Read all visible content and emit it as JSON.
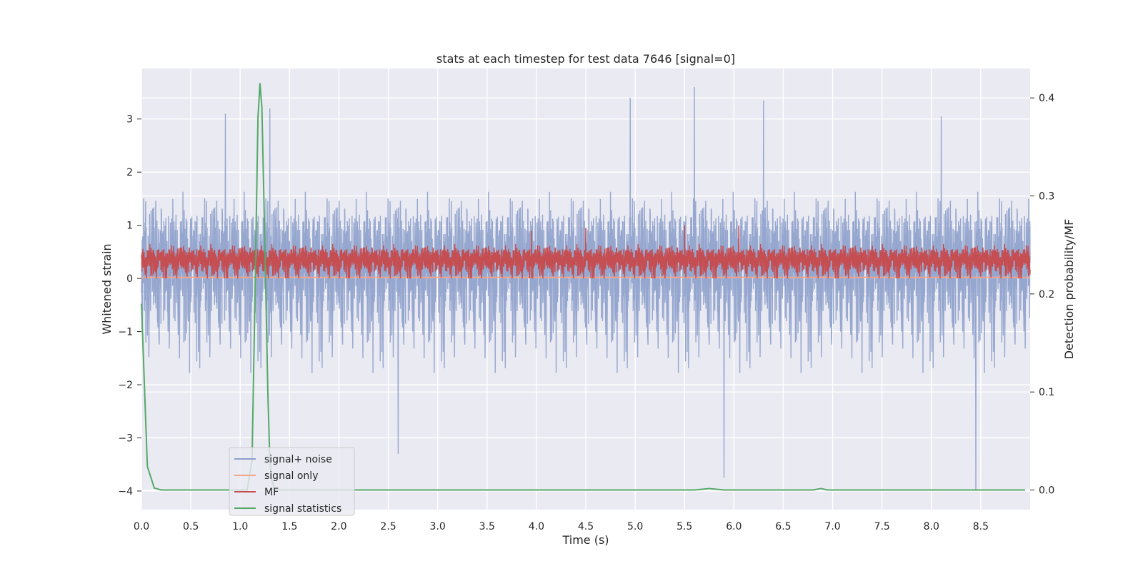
{
  "chart_data": {
    "type": "line",
    "title": "stats at each timestep for test data 7646 [signal=0]",
    "xlabel": "Time (s)",
    "ylabel_left": "Whitened strain",
    "ylabel_right": "Detection probability/MF",
    "xlim": [
      0.0,
      9.0
    ],
    "ylim_left": [
      -4.35,
      3.95
    ],
    "ylim_right": [
      -0.02,
      0.43
    ],
    "x_ticks": [
      0.0,
      0.5,
      1.0,
      1.5,
      2.0,
      2.5,
      3.0,
      3.5,
      4.0,
      4.5,
      5.0,
      5.5,
      6.0,
      6.5,
      7.0,
      7.5,
      8.0,
      8.5
    ],
    "x_tick_labels": [
      "0.0",
      "0.5",
      "1.0",
      "1.5",
      "2.0",
      "2.5",
      "3.0",
      "3.5",
      "4.0",
      "4.5",
      "5.0",
      "5.5",
      "6.0",
      "6.5",
      "7.0",
      "7.5",
      "8.0",
      "8.5"
    ],
    "y_left_ticks": [
      3,
      2,
      1,
      0,
      -1,
      -2,
      -3,
      -4
    ],
    "y_left_tick_labels": [
      "3",
      "2",
      "1",
      "0",
      "−1",
      "−2",
      "−3",
      "−4"
    ],
    "y_right_ticks": [
      0.4,
      0.3,
      0.2,
      0.1,
      0.0
    ],
    "y_right_tick_labels": [
      "0.4",
      "0.3",
      "0.2",
      "0.1",
      "0.0"
    ],
    "grid": true,
    "legend_position": "lower-left",
    "series": [
      {
        "name": "signal+ noise",
        "axis": "left",
        "color": "#8da0cb",
        "style": "dense noise",
        "sample_rate_hz": 400,
        "typical_range": [
          -1.5,
          1.5
        ],
        "extremes": [
          {
            "x": 0.85,
            "y": 3.1
          },
          {
            "x": 1.3,
            "y": 3.2
          },
          {
            "x": 4.95,
            "y": 3.4
          },
          {
            "x": 5.6,
            "y": 3.6
          },
          {
            "x": 6.3,
            "y": 3.35
          },
          {
            "x": 8.1,
            "y": 3.05
          },
          {
            "x": 2.6,
            "y": -3.3
          },
          {
            "x": 5.9,
            "y": -3.75
          },
          {
            "x": 8.45,
            "y": -4.0
          }
        ]
      },
      {
        "name": "signal only",
        "axis": "left",
        "color": "#f0a589",
        "x": [
          0.0,
          9.0
        ],
        "y": [
          0.02,
          0.02
        ]
      },
      {
        "name": "MF",
        "axis": "left",
        "color": "#c44e52",
        "style": "dense noise",
        "sample_rate_hz": 400,
        "typical_range": [
          0.0,
          0.6
        ],
        "extremes": [
          {
            "x": 3.95,
            "y": 0.9
          },
          {
            "x": 4.5,
            "y": 0.95
          },
          {
            "x": 5.5,
            "y": 1.0
          },
          {
            "x": 6.05,
            "y": 1.0
          }
        ]
      },
      {
        "name": "signal statistics",
        "axis": "right",
        "color": "#55a868",
        "x": [
          0.0,
          0.06,
          0.13,
          0.2,
          0.3,
          0.5,
          1.0,
          1.07,
          1.12,
          1.15,
          1.18,
          1.2,
          1.22,
          1.25,
          1.28,
          1.3,
          1.32,
          1.35,
          1.4,
          1.5,
          2.0,
          3.0,
          4.0,
          5.0,
          5.6,
          5.75,
          5.9,
          6.5,
          6.8,
          6.88,
          6.95,
          7.5,
          8.0,
          8.5,
          8.95
        ],
        "y": [
          0.19,
          0.024,
          0.002,
          0.0,
          0.0,
          0.0,
          0.0,
          0.0,
          0.03,
          0.2,
          0.38,
          0.415,
          0.39,
          0.25,
          0.1,
          0.03,
          0.01,
          0.0,
          0.0,
          0.0,
          0.0,
          0.0,
          0.0,
          0.0,
          0.0,
          0.0015,
          0.0,
          0.0,
          0.0,
          0.0015,
          0.0,
          0.0,
          0.0,
          0.0,
          0.0
        ]
      }
    ]
  }
}
